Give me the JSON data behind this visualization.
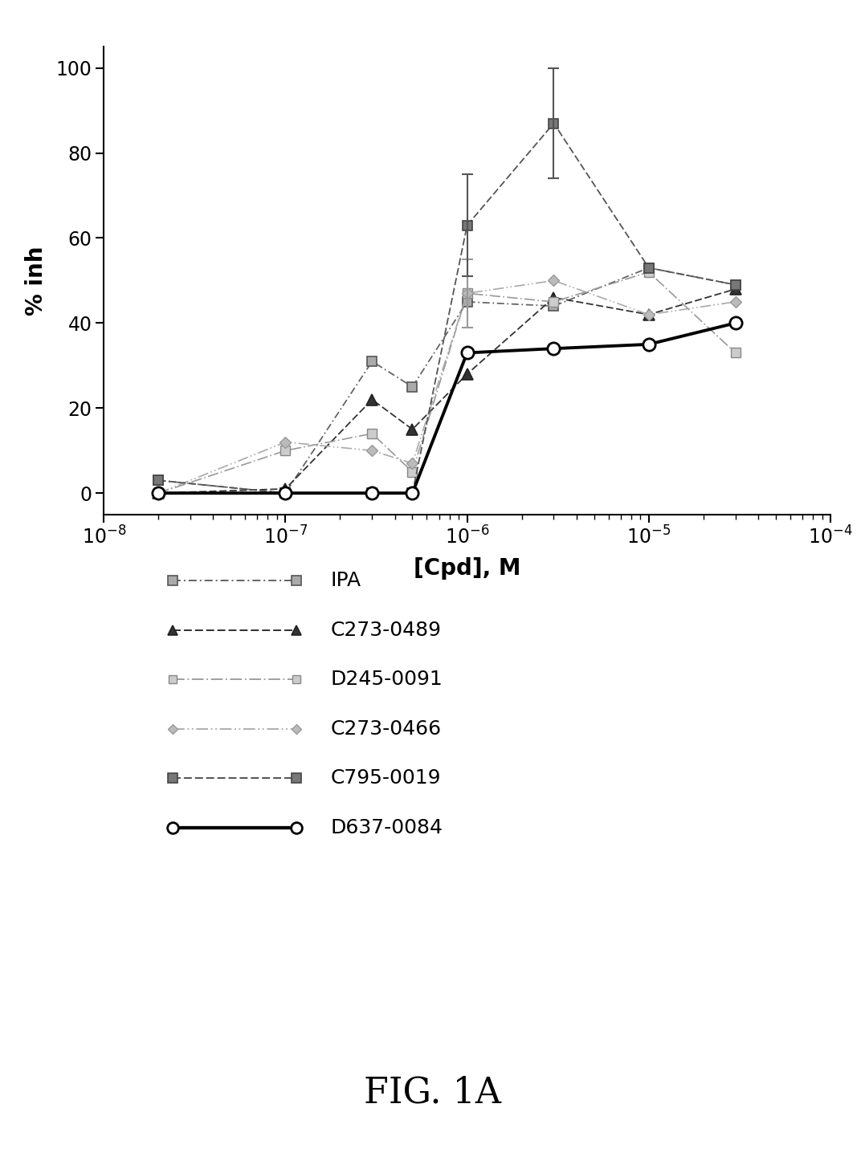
{
  "title": "FIG. 1A",
  "xlabel": "[Cpd], M",
  "ylabel": "% inh",
  "ylim": [
    -5,
    105
  ],
  "yticks": [
    0,
    20,
    40,
    60,
    80,
    100
  ],
  "series": {
    "IPA": {
      "x": [
        2e-08,
        1e-07,
        3e-07,
        5e-07,
        1e-06,
        3e-06,
        1e-05,
        3e-05
      ],
      "y": [
        3,
        0,
        31,
        25,
        45,
        44,
        53,
        49
      ],
      "yerr": [
        0,
        0,
        0,
        0,
        0,
        0,
        0,
        0
      ],
      "color": "#666666",
      "linewidth": 1.3,
      "zorder": 2
    },
    "C273-0489": {
      "x": [
        2e-08,
        1e-07,
        3e-07,
        5e-07,
        1e-06,
        3e-06,
        1e-05,
        3e-05
      ],
      "y": [
        0,
        1,
        22,
        15,
        28,
        46,
        42,
        48
      ],
      "yerr": [
        0,
        0,
        0,
        0,
        0,
        0,
        0,
        0
      ],
      "color": "#333333",
      "linewidth": 1.3,
      "zorder": 2
    },
    "D245-0091": {
      "x": [
        2e-08,
        1e-07,
        3e-07,
        5e-07,
        1e-06,
        3e-06,
        1e-05,
        3e-05
      ],
      "y": [
        0,
        10,
        14,
        5,
        47,
        45,
        52,
        33
      ],
      "yerr": [
        0,
        0,
        0,
        0,
        8,
        0,
        0,
        0
      ],
      "color": "#999999",
      "linewidth": 1.3,
      "zorder": 2
    },
    "C273-0466": {
      "x": [
        2e-08,
        1e-07,
        3e-07,
        5e-07,
        1e-06,
        3e-06,
        1e-05,
        3e-05
      ],
      "y": [
        0,
        12,
        10,
        7,
        47,
        50,
        42,
        45
      ],
      "yerr": [
        0,
        0,
        0,
        0,
        0,
        0,
        0,
        0
      ],
      "color": "#aaaaaa",
      "linewidth": 1.3,
      "zorder": 2
    },
    "C795-0019": {
      "x": [
        2e-08,
        1e-07,
        3e-07,
        5e-07,
        1e-06,
        3e-06,
        1e-05,
        3e-05
      ],
      "y": [
        3,
        0,
        0,
        0,
        63,
        87,
        53,
        49
      ],
      "yerr": [
        0,
        0,
        0,
        0,
        12,
        13,
        0,
        0
      ],
      "color": "#555555",
      "linewidth": 1.3,
      "zorder": 2
    },
    "D637-0084": {
      "x": [
        2e-08,
        1e-07,
        3e-07,
        5e-07,
        1e-06,
        3e-06,
        1e-05,
        3e-05
      ],
      "y": [
        0,
        0,
        0,
        0,
        33,
        34,
        35,
        40
      ],
      "yerr": [
        0,
        0,
        0,
        0,
        0,
        0,
        0,
        0
      ],
      "color": "#000000",
      "linewidth": 2.8,
      "zorder": 3
    }
  },
  "legend_order": [
    "IPA",
    "C273-0489",
    "D245-0091",
    "C273-0466",
    "C795-0019",
    "D637-0084"
  ],
  "legend_fontsize": 18,
  "axis_label_fontsize": 20,
  "tick_fontsize": 17,
  "fig1a_fontsize": 32
}
